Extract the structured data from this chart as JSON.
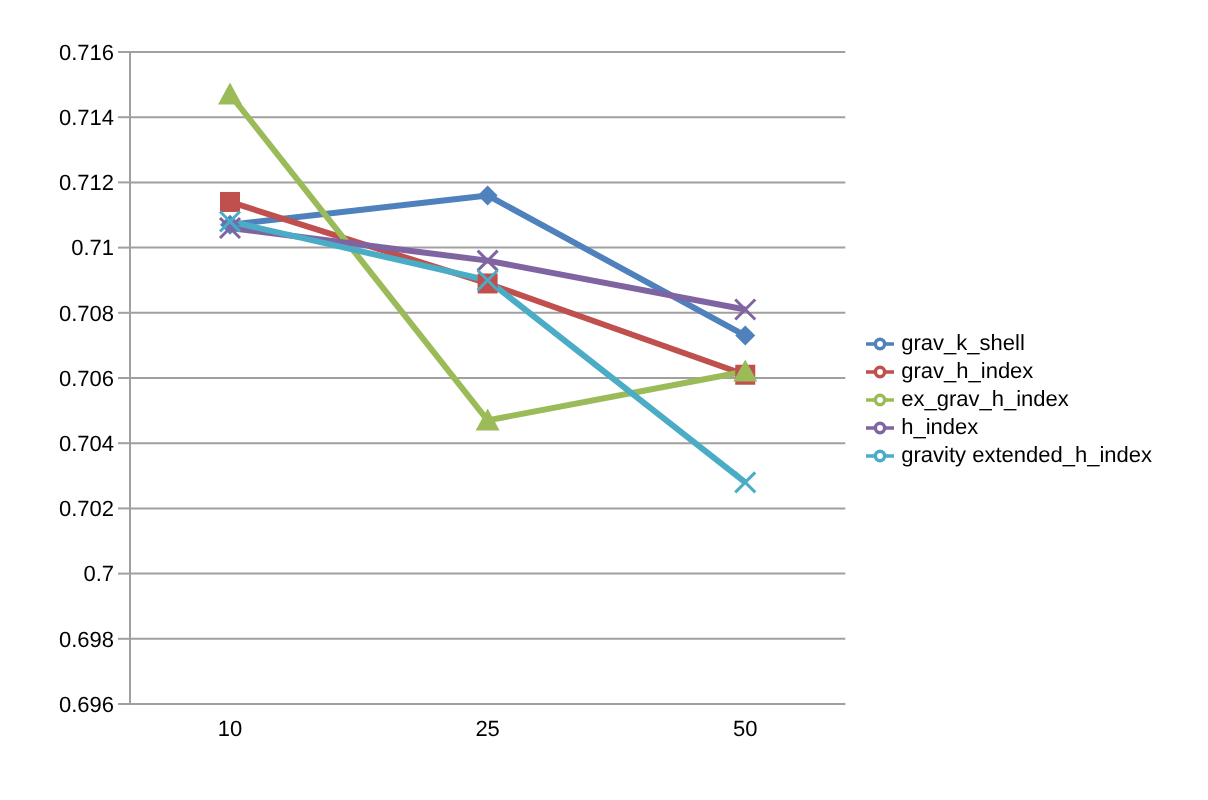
{
  "chart_data": {
    "type": "line",
    "categories": [
      "10",
      "25",
      "50"
    ],
    "series": [
      {
        "name": "grav_k_shell",
        "color": "#4f81bd",
        "marker": "diamond",
        "values": [
          0.7107,
          0.7116,
          0.7073
        ]
      },
      {
        "name": "grav_h_index",
        "color": "#c0504d",
        "marker": "square",
        "values": [
          0.7114,
          0.7089,
          0.7061
        ]
      },
      {
        "name": "ex_grav_h_index",
        "color": "#9bbb59",
        "marker": "triangle",
        "values": [
          0.7147,
          0.7047,
          0.7062
        ]
      },
      {
        "name": "h_index",
        "color": "#8064a2",
        "marker": "cross",
        "values": [
          0.7106,
          0.7096,
          0.7081
        ]
      },
      {
        "name": "gravity extended_h_index",
        "color": "#4bacc6",
        "marker": "cross",
        "values": [
          0.7108,
          0.709,
          0.7028
        ]
      }
    ],
    "ylim": [
      0.696,
      0.716
    ],
    "yticks": [
      0.696,
      0.698,
      0.7,
      0.702,
      0.704,
      0.706,
      0.708,
      0.71,
      0.712,
      0.714,
      0.716
    ],
    "grid": "y",
    "legend": "right"
  }
}
